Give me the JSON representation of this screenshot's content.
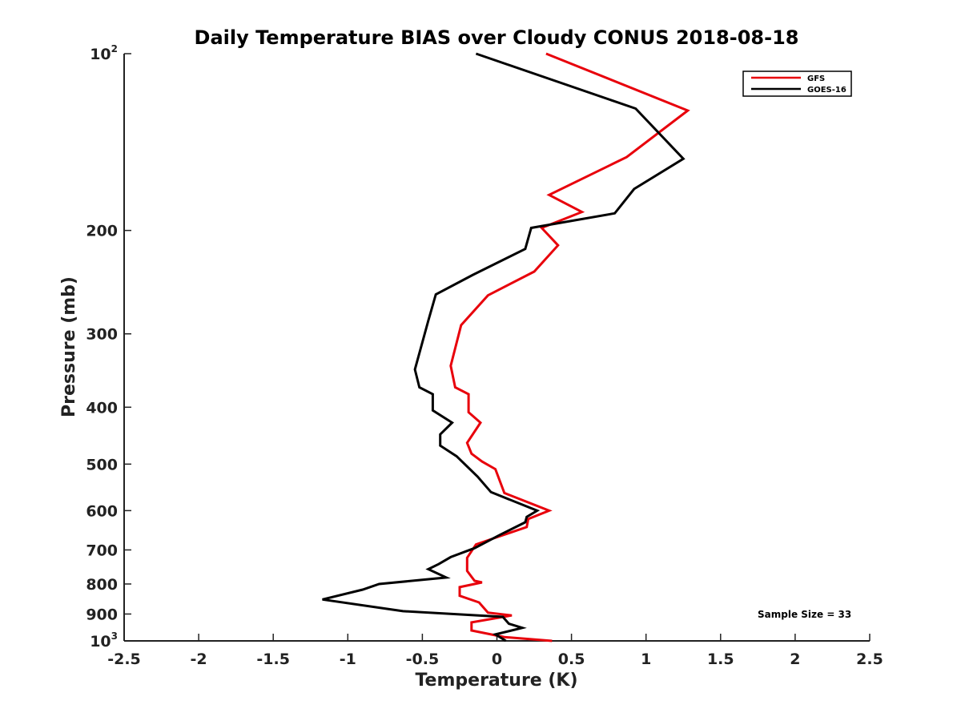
{
  "chart_data": {
    "type": "line",
    "title": "Daily Temperature BIAS over Cloudy CONUS 2018-08-18",
    "xlabel": "Temperature (K)",
    "ylabel": "Pressure (mb)",
    "xlim": [
      -2.5,
      2.5
    ],
    "ylim": [
      1000,
      100
    ],
    "yscale": "log",
    "y_reversed": true,
    "xticks": [
      -2.5,
      -2,
      -1.5,
      -1,
      -0.5,
      0,
      0.5,
      1,
      1.5,
      2,
      2.5
    ],
    "xtick_labels": [
      "-2.5",
      "-2",
      "-1.5",
      "-1",
      "-0.5",
      "0",
      "0.5",
      "1",
      "1.5",
      "2",
      "2.5"
    ],
    "yticks": [
      {
        "value": 100,
        "base": "10",
        "exp": "2"
      },
      {
        "value": 200,
        "label": "200"
      },
      {
        "value": 300,
        "label": "300"
      },
      {
        "value": 400,
        "label": "400"
      },
      {
        "value": 500,
        "label": "500"
      },
      {
        "value": 600,
        "label": "600"
      },
      {
        "value": 700,
        "label": "700"
      },
      {
        "value": 800,
        "label": "800"
      },
      {
        "value": 900,
        "label": "900"
      },
      {
        "value": 1000,
        "base": "10",
        "exp": "3"
      }
    ],
    "grid": false,
    "legend_position": "top-right",
    "annotation": "Sample Size = 33",
    "series": [
      {
        "name": "GFS",
        "color": "#e8000b",
        "points": [
          [
            0.33,
            100
          ],
          [
            1.28,
            125
          ],
          [
            0.87,
            150
          ],
          [
            0.35,
            174
          ],
          [
            0.57,
            186
          ],
          [
            0.3,
            198
          ],
          [
            0.41,
            212
          ],
          [
            0.25,
            235
          ],
          [
            -0.06,
            258
          ],
          [
            -0.24,
            290
          ],
          [
            -0.31,
            340
          ],
          [
            -0.28,
            370
          ],
          [
            -0.19,
            380
          ],
          [
            -0.19,
            408
          ],
          [
            -0.11,
            425
          ],
          [
            -0.2,
            460
          ],
          [
            -0.17,
            480
          ],
          [
            -0.1,
            495
          ],
          [
            -0.01,
            510
          ],
          [
            0.05,
            560
          ],
          [
            0.35,
            600
          ],
          [
            0.21,
            620
          ],
          [
            0.2,
            640
          ],
          [
            -0.03,
            670
          ],
          [
            -0.14,
            685
          ],
          [
            -0.2,
            722
          ],
          [
            -0.2,
            760
          ],
          [
            -0.15,
            790
          ],
          [
            -0.1,
            795
          ],
          [
            -0.25,
            810
          ],
          [
            -0.25,
            838
          ],
          [
            -0.12,
            860
          ],
          [
            -0.06,
            895
          ],
          [
            0.1,
            905
          ],
          [
            -0.17,
            930
          ],
          [
            -0.17,
            960
          ],
          [
            0.05,
            985
          ],
          [
            0.37,
            1000
          ]
        ]
      },
      {
        "name": "GOES-16",
        "color": "#000000",
        "points": [
          [
            -0.14,
            100
          ],
          [
            0.93,
            124
          ],
          [
            1.25,
            151
          ],
          [
            0.92,
            170
          ],
          [
            0.79,
            187
          ],
          [
            0.23,
            198
          ],
          [
            0.19,
            215
          ],
          [
            -0.16,
            238
          ],
          [
            -0.41,
            257
          ],
          [
            -0.46,
            285
          ],
          [
            -0.55,
            345
          ],
          [
            -0.52,
            370
          ],
          [
            -0.43,
            380
          ],
          [
            -0.43,
            405
          ],
          [
            -0.3,
            425
          ],
          [
            -0.38,
            445
          ],
          [
            -0.38,
            465
          ],
          [
            -0.27,
            485
          ],
          [
            -0.13,
            525
          ],
          [
            -0.04,
            558
          ],
          [
            0.27,
            600
          ],
          [
            0.2,
            615
          ],
          [
            0.19,
            628
          ],
          [
            0.02,
            660
          ],
          [
            -0.15,
            695
          ],
          [
            -0.31,
            720
          ],
          [
            -0.39,
            740
          ],
          [
            -0.46,
            755
          ],
          [
            -0.34,
            780
          ],
          [
            -0.79,
            800
          ],
          [
            -0.9,
            818
          ],
          [
            -1.17,
            850
          ],
          [
            -0.63,
            890
          ],
          [
            0.04,
            910
          ],
          [
            0.08,
            935
          ],
          [
            0.17,
            950
          ],
          [
            -0.01,
            975
          ],
          [
            0.06,
            1000
          ]
        ]
      }
    ]
  }
}
